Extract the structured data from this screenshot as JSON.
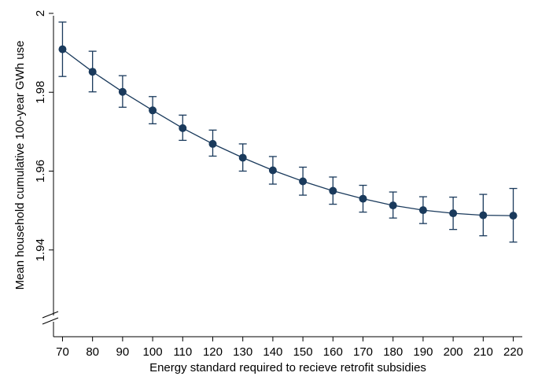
{
  "chart_data": {
    "type": "line",
    "title": "",
    "xlabel": "Energy standard required to recieve retrofit subsidies",
    "ylabel": "Mean household cumulative 100-year GWh use",
    "x": [
      70,
      80,
      90,
      100,
      110,
      120,
      130,
      140,
      150,
      160,
      170,
      180,
      190,
      200,
      210,
      220
    ],
    "series": [
      {
        "values": [
          1.9909,
          1.9852,
          1.9801,
          1.9754,
          1.9709,
          1.9669,
          1.9634,
          1.9602,
          1.9574,
          1.955,
          1.953,
          1.9513,
          1.9501,
          1.9493,
          1.9488,
          1.9487
        ],
        "lower": [
          1.984,
          1.9801,
          1.9762,
          1.972,
          1.9678,
          1.9638,
          1.96,
          1.9567,
          1.9539,
          1.9516,
          1.9496,
          1.9481,
          1.9467,
          1.9452,
          1.9436,
          1.942
        ],
        "upper": [
          1.9978,
          1.9904,
          1.9842,
          1.9789,
          1.9742,
          1.9704,
          1.9669,
          1.9637,
          1.961,
          1.9585,
          1.9564,
          1.9547,
          1.9535,
          1.9534,
          1.9541,
          1.9556
        ],
        "color": "#1a3a5c"
      }
    ],
    "xticks": [
      "70",
      "80",
      "90",
      "100",
      "110",
      "120",
      "130",
      "140",
      "150",
      "160",
      "170",
      "180",
      "190",
      "200",
      "210",
      "220"
    ],
    "yticks": [
      "1.94",
      "1.96",
      "1.98",
      "2"
    ],
    "ytick_values": [
      1.94,
      1.96,
      1.98,
      2.0
    ],
    "ylim": [
      1.918,
      2.001
    ],
    "xlim": [
      67,
      223
    ],
    "y_axis_break": true,
    "grid": false,
    "legend": "none"
  }
}
